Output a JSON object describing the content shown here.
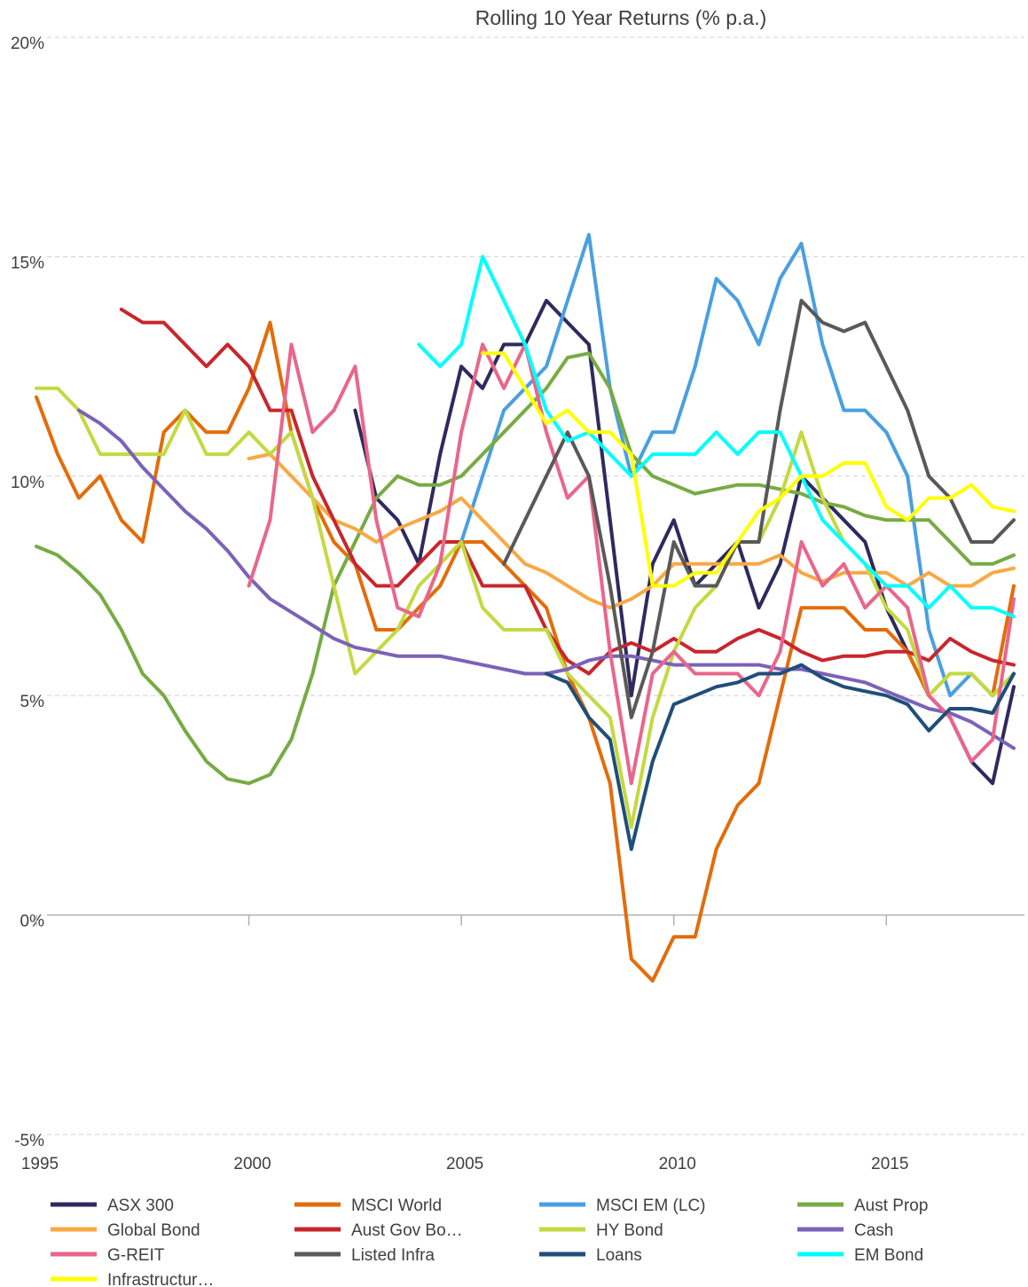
{
  "chart_data": {
    "type": "line",
    "title": "Rolling 10 Year Returns (% p.a.)",
    "x": [
      1995,
      1995.5,
      1996,
      1996.5,
      1997,
      1997.5,
      1998,
      1998.5,
      1999,
      1999.5,
      2000,
      2000.5,
      2001,
      2001.5,
      2002,
      2002.5,
      2003,
      2003.5,
      2004,
      2004.5,
      2005,
      2005.5,
      2006,
      2006.5,
      2007,
      2007.5,
      2008,
      2008.5,
      2009,
      2009.5,
      2010,
      2010.5,
      2011,
      2011.5,
      2012,
      2012.5,
      2013,
      2013.5,
      2014,
      2014.5,
      2015,
      2015.5,
      2016,
      2016.5,
      2017,
      2017.5,
      2018
    ],
    "xlim": [
      1995,
      2018.25
    ],
    "xticks": [
      1995,
      2000,
      2005,
      2010,
      2015
    ],
    "ylim": [
      -5,
      20
    ],
    "yticks": [
      {
        "value": -5,
        "label": "-5%"
      },
      {
        "value": 0,
        "label": "0%"
      },
      {
        "value": 5,
        "label": "5%"
      },
      {
        "value": 10,
        "label": "10%"
      },
      {
        "value": 15,
        "label": "15%"
      },
      {
        "value": 20,
        "label": "20%"
      }
    ],
    "grid": true,
    "legend": "bottom",
    "series": [
      {
        "name": "ASX 300",
        "color": "#2e2a5e",
        "values": [
          null,
          null,
          null,
          null,
          null,
          null,
          null,
          null,
          null,
          null,
          null,
          null,
          null,
          null,
          null,
          11.5,
          9.5,
          9,
          8,
          10.5,
          12.5,
          12,
          13,
          13,
          14,
          13.5,
          13,
          9,
          5,
          8,
          9,
          7.5,
          8,
          8.5,
          7,
          8,
          10,
          9.5,
          9,
          8.5,
          7,
          6,
          5,
          4.5,
          3.5,
          3,
          5.2
        ]
      },
      {
        "name": "MSCI World",
        "color": "#e36c0a",
        "values": [
          11.8,
          10.5,
          9.5,
          10,
          9,
          8.5,
          11,
          11.5,
          11,
          11,
          12,
          13.5,
          11,
          9.5,
          8.5,
          8,
          6.5,
          6.5,
          7,
          7.5,
          8.5,
          8.5,
          8,
          7.5,
          7,
          5.5,
          4.5,
          3,
          -1,
          -1.5,
          -0.5,
          -0.5,
          1.5,
          2.5,
          3,
          5,
          7,
          7,
          7,
          6.5,
          6.5,
          6,
          5,
          5.5,
          5.5,
          5,
          7.5
        ]
      },
      {
        "name": "MSCI EM (LC)",
        "color": "#4a9fe0",
        "values": [
          null,
          null,
          null,
          null,
          null,
          null,
          null,
          null,
          null,
          null,
          null,
          null,
          null,
          null,
          null,
          null,
          null,
          null,
          null,
          null,
          8.5,
          10,
          11.5,
          12,
          12.5,
          14,
          15.5,
          12,
          10,
          11,
          11,
          12.5,
          14.5,
          14,
          13,
          14.5,
          15.3,
          13,
          11.5,
          11.5,
          11,
          10,
          6.5,
          5,
          5.5,
          5,
          5.5
        ]
      },
      {
        "name": "Aust Prop",
        "color": "#77ab43",
        "values": [
          8.4,
          8.2,
          7.8,
          7.3,
          6.5,
          5.5,
          5,
          4.2,
          3.5,
          3.1,
          3,
          3.2,
          4,
          5.5,
          7.5,
          8.5,
          9.5,
          10,
          9.8,
          9.8,
          10,
          10.5,
          11,
          11.5,
          12,
          12.7,
          12.8,
          12,
          10.5,
          10,
          9.8,
          9.6,
          9.7,
          9.8,
          9.8,
          9.7,
          9.6,
          9.4,
          9.3,
          9.1,
          9,
          9,
          9,
          8.5,
          8,
          8,
          8.2
        ]
      },
      {
        "name": "Global Bond",
        "color": "#f9a845",
        "values": [
          null,
          null,
          null,
          null,
          null,
          null,
          null,
          null,
          null,
          null,
          10.4,
          10.5,
          10,
          9.5,
          9,
          8.8,
          8.5,
          8.8,
          9,
          9.2,
          9.5,
          9,
          8.5,
          8,
          7.8,
          7.5,
          7.2,
          7,
          7.2,
          7.5,
          8,
          8,
          8,
          8,
          8,
          8.2,
          7.8,
          7.6,
          7.8,
          7.8,
          7.8,
          7.5,
          7.8,
          7.5,
          7.5,
          7.8,
          7.9
        ]
      },
      {
        "name": "Aust Gov Bo…",
        "color": "#c8262c",
        "values": [
          null,
          null,
          null,
          null,
          13.8,
          13.5,
          13.5,
          13,
          12.5,
          13,
          12.5,
          11.5,
          11.5,
          10,
          9,
          8,
          7.5,
          7.5,
          8,
          8.5,
          8.5,
          7.5,
          7.5,
          7.5,
          6.5,
          5.8,
          5.5,
          6,
          6.2,
          6,
          6.3,
          6,
          6,
          6.3,
          6.5,
          6.3,
          6,
          5.8,
          5.9,
          5.9,
          6,
          6,
          5.8,
          6.3,
          6,
          5.8,
          5.7
        ]
      },
      {
        "name": "HY Bond",
        "color": "#c4d940",
        "values": [
          12,
          12,
          11.5,
          10.5,
          10.5,
          10.5,
          10.5,
          11.5,
          10.5,
          10.5,
          11,
          10.5,
          11,
          9.5,
          7.5,
          5.5,
          6,
          6.5,
          7.5,
          8,
          8.5,
          7,
          6.5,
          6.5,
          6.5,
          5.5,
          5,
          4.5,
          2,
          4.5,
          6,
          7,
          7.5,
          8.5,
          8.5,
          9.5,
          11,
          9.5,
          8.5,
          8,
          7,
          6.5,
          5,
          5.5,
          5.5,
          5,
          5.5
        ]
      },
      {
        "name": "Cash",
        "color": "#7b62b8",
        "values": [
          null,
          null,
          11.5,
          11.2,
          10.8,
          10.2,
          9.7,
          9.2,
          8.8,
          8.3,
          7.7,
          7.2,
          6.9,
          6.6,
          6.3,
          6.1,
          6,
          5.9,
          5.9,
          5.9,
          5.8,
          5.7,
          5.6,
          5.5,
          5.5,
          5.6,
          5.8,
          5.9,
          5.9,
          5.8,
          5.7,
          5.7,
          5.7,
          5.7,
          5.7,
          5.6,
          5.6,
          5.5,
          5.4,
          5.3,
          5.1,
          4.9,
          4.7,
          4.6,
          4.4,
          4.1,
          3.8
        ]
      },
      {
        "name": "G-REIT",
        "color": "#e9668a",
        "values": [
          null,
          null,
          null,
          null,
          null,
          null,
          null,
          null,
          null,
          null,
          7.5,
          9,
          13,
          11,
          11.5,
          12.5,
          9,
          7,
          6.8,
          8,
          11,
          13,
          12,
          13,
          11,
          9.5,
          10,
          6,
          3,
          5.5,
          6,
          5.5,
          5.5,
          5.5,
          5,
          6,
          8.5,
          7.5,
          8,
          7,
          7.5,
          7,
          5,
          4.5,
          3.5,
          4,
          7.2
        ]
      },
      {
        "name": "Listed Infra",
        "color": "#595959",
        "values": [
          null,
          null,
          null,
          null,
          null,
          null,
          null,
          null,
          null,
          null,
          null,
          null,
          null,
          null,
          null,
          null,
          null,
          null,
          null,
          null,
          null,
          null,
          8,
          9,
          10,
          11,
          10,
          7.5,
          4.5,
          6,
          8.5,
          7.5,
          7.5,
          8.5,
          8.5,
          11.5,
          14,
          13.5,
          13.3,
          13.5,
          12.5,
          11.5,
          10,
          9.5,
          8.5,
          8.5,
          9
        ]
      },
      {
        "name": "Loans",
        "color": "#1f4e79",
        "values": [
          null,
          null,
          null,
          null,
          null,
          null,
          null,
          null,
          null,
          null,
          null,
          null,
          null,
          null,
          null,
          null,
          null,
          null,
          null,
          null,
          null,
          null,
          null,
          null,
          5.5,
          5.3,
          4.5,
          4,
          1.5,
          3.5,
          4.8,
          5,
          5.2,
          5.3,
          5.5,
          5.5,
          5.7,
          5.4,
          5.2,
          5.1,
          5,
          4.8,
          4.2,
          4.7,
          4.7,
          4.6,
          5.5
        ]
      },
      {
        "name": "EM Bond",
        "color": "#00ffff",
        "values": [
          null,
          null,
          null,
          null,
          null,
          null,
          null,
          null,
          null,
          null,
          null,
          null,
          null,
          null,
          null,
          null,
          null,
          null,
          13,
          12.5,
          13,
          15,
          14,
          13,
          11.5,
          10.8,
          11,
          10.5,
          10,
          10.5,
          10.5,
          10.5,
          11,
          10.5,
          11,
          11,
          10,
          9,
          8.5,
          8,
          7.5,
          7.5,
          7,
          7.5,
          7,
          7,
          6.8
        ]
      },
      {
        "name": "Infrastructur…",
        "color": "#ffff00",
        "values": [
          null,
          null,
          null,
          null,
          null,
          null,
          null,
          null,
          null,
          null,
          null,
          null,
          null,
          null,
          null,
          null,
          null,
          null,
          null,
          null,
          null,
          12.8,
          12.8,
          12,
          11.2,
          11.5,
          11,
          11,
          10.5,
          7.5,
          7.5,
          7.8,
          7.8,
          8.5,
          9.2,
          9.5,
          10,
          10,
          10.3,
          10.3,
          9.3,
          9,
          9.5,
          9.5,
          9.8,
          9.3,
          9.2
        ]
      }
    ]
  }
}
